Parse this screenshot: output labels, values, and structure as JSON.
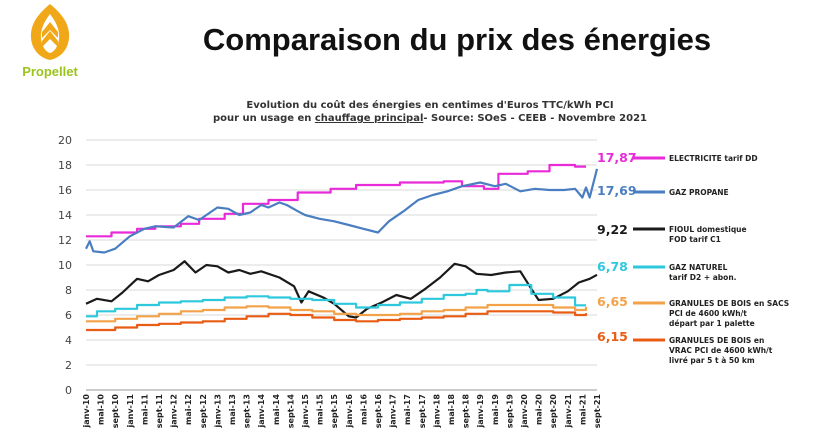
{
  "header": {
    "logo_text": "Propellet",
    "title": "Comparaison du prix des énergies",
    "subtitle_line1": "Evolution du coût des énergies en centimes d'Euros TTC/kWh PCI",
    "subtitle_line2_a": "pour un usage en ",
    "subtitle_line2_u": "chauffage principal",
    "subtitle_line2_b": "- Source: SOeS - CEEB - Novembre 2021",
    "brand_color": "#9bc31c",
    "accent_color": "#f0a818"
  },
  "chart_data": {
    "type": "line",
    "title": "Evolution du coût des énergies en centimes d'Euros TTC/kWh PCI pour un usage en chauffage principal- Source: SOeS - CEEB - Novembre 2021",
    "ylim": [
      0,
      20
    ],
    "yticks": [
      0,
      2,
      4,
      6,
      8,
      10,
      12,
      14,
      16,
      18,
      20
    ],
    "grid": true,
    "legend_placement": "right",
    "x_range_months": [
      "janv-10",
      "sept-21"
    ],
    "xticks": [
      "janv-10",
      "mai-10",
      "sept-10",
      "janv-11",
      "mai-11",
      "sept-11",
      "janv-12",
      "mai-12",
      "sept-12",
      "janv-13",
      "mai-13",
      "sept-13",
      "janv-14",
      "mai-14",
      "sept-14",
      "janv-15",
      "mai-15",
      "sept-15",
      "janv-16",
      "mai-16",
      "sept-16",
      "janv-17",
      "mai-17",
      "sept-17",
      "janv-18",
      "mai-18",
      "sept-18",
      "janv-19",
      "mai-19",
      "sept-19",
      "janv-20",
      "mai-20",
      "sept-20",
      "janv-21",
      "mai-21",
      "sept-21"
    ],
    "series": [
      {
        "name": "ELECTRICITE tarif DD",
        "color": "#e82ad8",
        "end_label": "17,87",
        "step": true,
        "points": [
          [
            "janv-10",
            12.3
          ],
          [
            "août-10",
            12.6
          ],
          [
            "mars-11",
            12.9
          ],
          [
            "août-11",
            13.1
          ],
          [
            "mars-12",
            13.3
          ],
          [
            "août-12",
            13.7
          ],
          [
            "mars-13",
            14.1
          ],
          [
            "août-13",
            14.9
          ],
          [
            "mars-14",
            15.2
          ],
          [
            "nov-14",
            15.8
          ],
          [
            "août-15",
            16.1
          ],
          [
            "mars-16",
            16.4
          ],
          [
            "mars-17",
            16.6
          ],
          [
            "mars-18",
            16.7
          ],
          [
            "août-18",
            16.3
          ],
          [
            "févr-19",
            16.1
          ],
          [
            "juin-19",
            17.3
          ],
          [
            "févr-20",
            17.5
          ],
          [
            "août-20",
            18.0
          ],
          [
            "mars-21",
            17.87
          ],
          [
            "juin-21",
            17.87
          ]
        ]
      },
      {
        "name": "GAZ PROPANE",
        "color": "#4a7ec0",
        "end_label": "17,69",
        "step": false,
        "points": [
          [
            "janv-10",
            11.3
          ],
          [
            "févr-10",
            11.9
          ],
          [
            "mars-10",
            11.1
          ],
          [
            "juin-10",
            11.0
          ],
          [
            "sept-10",
            11.3
          ],
          [
            "janv-11",
            12.3
          ],
          [
            "mai-11",
            12.9
          ],
          [
            "août-11",
            13.1
          ],
          [
            "janv-12",
            13.0
          ],
          [
            "mai-12",
            13.9
          ],
          [
            "août-12",
            13.6
          ],
          [
            "janv-13",
            14.6
          ],
          [
            "avr-13",
            14.5
          ],
          [
            "juil-13",
            14.0
          ],
          [
            "oct-13",
            14.2
          ],
          [
            "janv-14",
            14.8
          ],
          [
            "mars-14",
            14.6
          ],
          [
            "juin-14",
            15.0
          ],
          [
            "août-14",
            14.8
          ],
          [
            "nov-14",
            14.3
          ],
          [
            "janv-15",
            14.0
          ],
          [
            "mai-15",
            13.7
          ],
          [
            "sept-15",
            13.5
          ],
          [
            "janv-16",
            13.2
          ],
          [
            "mai-16",
            12.9
          ],
          [
            "sept-16",
            12.6
          ],
          [
            "déc-16",
            13.5
          ],
          [
            "avr-17",
            14.3
          ],
          [
            "août-17",
            15.2
          ],
          [
            "déc-17",
            15.6
          ],
          [
            "avr-18",
            15.9
          ],
          [
            "août-18",
            16.3
          ],
          [
            "janv-19",
            16.6
          ],
          [
            "mai-19",
            16.3
          ],
          [
            "août-19",
            16.5
          ],
          [
            "déc-19",
            15.9
          ],
          [
            "avr-20",
            16.1
          ],
          [
            "août-20",
            16.0
          ],
          [
            "déc-20",
            16.0
          ],
          [
            "mars-21",
            16.1
          ],
          [
            "mai-21",
            15.4
          ],
          [
            "juin-21",
            16.2
          ],
          [
            "juil-21",
            15.4
          ],
          [
            "sept-21",
            17.69
          ]
        ]
      },
      {
        "name": "FIOUL domestique FOD tarif C1",
        "color": "#1a1a1a",
        "end_label": "9,22",
        "step": false,
        "points": [
          [
            "janv-10",
            6.9
          ],
          [
            "avr-10",
            7.3
          ],
          [
            "août-10",
            7.1
          ],
          [
            "nov-10",
            7.8
          ],
          [
            "mars-11",
            8.9
          ],
          [
            "juin-11",
            8.7
          ],
          [
            "sept-11",
            9.2
          ],
          [
            "janv-12",
            9.6
          ],
          [
            "avr-12",
            10.3
          ],
          [
            "juil-12",
            9.4
          ],
          [
            "oct-12",
            10.0
          ],
          [
            "janv-13",
            9.9
          ],
          [
            "avr-13",
            9.4
          ],
          [
            "juil-13",
            9.6
          ],
          [
            "oct-13",
            9.3
          ],
          [
            "janv-14",
            9.5
          ],
          [
            "juin-14",
            9.0
          ],
          [
            "oct-14",
            8.3
          ],
          [
            "déc-14",
            7.0
          ],
          [
            "févr-15",
            7.9
          ],
          [
            "juin-15",
            7.4
          ],
          [
            "sept-15",
            6.9
          ],
          [
            "janv-16",
            5.9
          ],
          [
            "mars-16",
            5.8
          ],
          [
            "juin-16",
            6.5
          ],
          [
            "oct-16",
            7.0
          ],
          [
            "févr-17",
            7.6
          ],
          [
            "juin-17",
            7.3
          ],
          [
            "oct-17",
            8.1
          ],
          [
            "févr-18",
            9.0
          ],
          [
            "juin-18",
            10.1
          ],
          [
            "sept-18",
            9.9
          ],
          [
            "déc-18",
            9.3
          ],
          [
            "avr-19",
            9.2
          ],
          [
            "août-19",
            9.4
          ],
          [
            "déc-19",
            9.5
          ],
          [
            "mars-20",
            8.1
          ],
          [
            "mai-20",
            7.2
          ],
          [
            "sept-20",
            7.3
          ],
          [
            "janv-21",
            7.9
          ],
          [
            "avr-21",
            8.6
          ],
          [
            "juil-21",
            8.9
          ],
          [
            "sept-21",
            9.22
          ]
        ]
      },
      {
        "name": "GAZ NATUREL tarif D2 + abon.",
        "color": "#2ec8dc",
        "end_label": "6,78",
        "step": true,
        "points": [
          [
            "janv-10",
            5.9
          ],
          [
            "avr-10",
            6.3
          ],
          [
            "sept-10",
            6.5
          ],
          [
            "mars-11",
            6.8
          ],
          [
            "sept-11",
            7.0
          ],
          [
            "mars-12",
            7.1
          ],
          [
            "sept-12",
            7.2
          ],
          [
            "mars-13",
            7.4
          ],
          [
            "sept-13",
            7.5
          ],
          [
            "mars-14",
            7.4
          ],
          [
            "sept-14",
            7.3
          ],
          [
            "mars-15",
            7.2
          ],
          [
            "sept-15",
            6.9
          ],
          [
            "mars-16",
            6.6
          ],
          [
            "sept-16",
            6.8
          ],
          [
            "mars-17",
            7.0
          ],
          [
            "sept-17",
            7.3
          ],
          [
            "mars-18",
            7.6
          ],
          [
            "sept-18",
            7.7
          ],
          [
            "déc-18",
            8.0
          ],
          [
            "mars-19",
            7.9
          ],
          [
            "sept-19",
            8.4
          ],
          [
            "mars-20",
            7.7
          ],
          [
            "sept-20",
            7.4
          ],
          [
            "mars-21",
            6.78
          ],
          [
            "juin-21",
            6.78
          ]
        ]
      },
      {
        "name": "GRANULES DE BOIS en SACS PCI de 4600 kWh/t départ par 1 palette",
        "color": "#f3a24a",
        "end_label": "6,65",
        "step": true,
        "points": [
          [
            "janv-10",
            5.5
          ],
          [
            "sept-10",
            5.7
          ],
          [
            "mars-11",
            5.9
          ],
          [
            "sept-11",
            6.1
          ],
          [
            "mars-12",
            6.3
          ],
          [
            "sept-12",
            6.4
          ],
          [
            "mars-13",
            6.6
          ],
          [
            "sept-13",
            6.7
          ],
          [
            "mars-14",
            6.6
          ],
          [
            "sept-14",
            6.4
          ],
          [
            "mars-15",
            6.3
          ],
          [
            "sept-15",
            6.1
          ],
          [
            "mars-16",
            6.0
          ],
          [
            "sept-16",
            6.0
          ],
          [
            "mars-17",
            6.1
          ],
          [
            "sept-17",
            6.3
          ],
          [
            "mars-18",
            6.4
          ],
          [
            "sept-18",
            6.6
          ],
          [
            "mars-19",
            6.8
          ],
          [
            "sept-19",
            6.8
          ],
          [
            "mars-20",
            6.8
          ],
          [
            "sept-20",
            6.6
          ],
          [
            "mars-21",
            6.4
          ],
          [
            "juin-21",
            6.65
          ]
        ]
      },
      {
        "name": "GRANULES DE BOIS en VRAC PCI de 4600 kWh/t livré par 5 t à 50 km",
        "color": "#e85c14",
        "end_label": "6,15",
        "step": true,
        "points": [
          [
            "janv-10",
            4.8
          ],
          [
            "sept-10",
            5.0
          ],
          [
            "mars-11",
            5.2
          ],
          [
            "sept-11",
            5.3
          ],
          [
            "mars-12",
            5.4
          ],
          [
            "sept-12",
            5.5
          ],
          [
            "mars-13",
            5.7
          ],
          [
            "sept-13",
            5.9
          ],
          [
            "mars-14",
            6.1
          ],
          [
            "sept-14",
            6.0
          ],
          [
            "mars-15",
            5.8
          ],
          [
            "sept-15",
            5.6
          ],
          [
            "mars-16",
            5.5
          ],
          [
            "sept-16",
            5.6
          ],
          [
            "mars-17",
            5.7
          ],
          [
            "sept-17",
            5.8
          ],
          [
            "mars-18",
            5.9
          ],
          [
            "sept-18",
            6.1
          ],
          [
            "mars-19",
            6.3
          ],
          [
            "sept-19",
            6.3
          ],
          [
            "mars-20",
            6.3
          ],
          [
            "sept-20",
            6.2
          ],
          [
            "mars-21",
            6.0
          ],
          [
            "juin-21",
            6.15
          ]
        ]
      }
    ],
    "legend": [
      {
        "lines": [
          "ELECTRICITE tarif DD"
        ],
        "color": "#e82ad8",
        "value": "17,87"
      },
      {
        "lines": [
          "GAZ PROPANE"
        ],
        "color": "#4a7ec0",
        "value": "17,69"
      },
      {
        "lines": [
          "FIOUL domestique",
          "FOD tarif C1"
        ],
        "color": "#1a1a1a",
        "value": "9,22"
      },
      {
        "lines": [
          "GAZ NATUREL",
          "tarif D2 + abon."
        ],
        "color": "#2ec8dc",
        "value": "6,78"
      },
      {
        "lines": [
          "GRANULES DE BOIS en SACS",
          "PCI de 4600 kWh/t",
          "départ par 1 palette"
        ],
        "color": "#f3a24a",
        "value": "6,65"
      },
      {
        "lines": [
          "GRANULES DE BOIS en",
          "VRAC  PCI de 4600 kWh/t",
          "livré par 5 t à 50 km"
        ],
        "color": "#e85c14",
        "value": "6,15"
      }
    ]
  }
}
